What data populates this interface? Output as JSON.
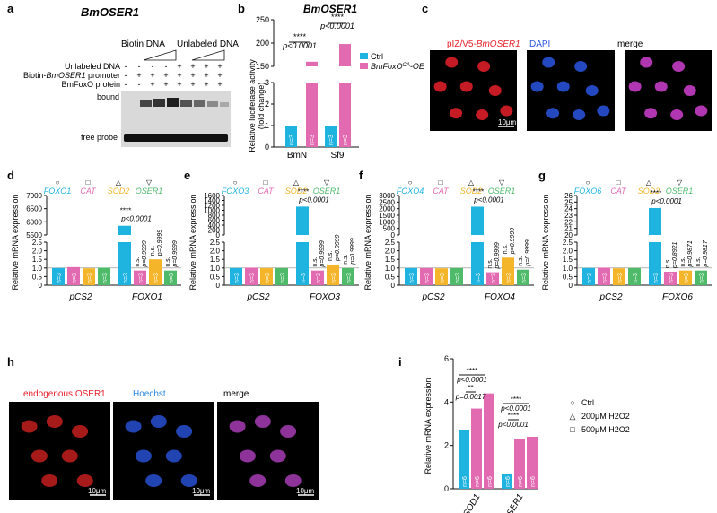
{
  "colors": {
    "cyan": "#1fb3df",
    "pink": "#e26ab1",
    "orange": "#f5b52a",
    "green": "#4fbb6a",
    "red": "#e8202a",
    "blue": "#2a55e0",
    "grey": "#888888"
  },
  "panels": {
    "a": "a",
    "b": "b",
    "c": "c",
    "d": "d",
    "e": "e",
    "f": "f",
    "g": "g",
    "h": "h",
    "i": "i"
  },
  "a": {
    "title": "BmOSER1",
    "biotin_dna": "Biotin DNA",
    "unlabeled_dna_header": "Unlabeled DNA",
    "row1": "Unlabeled DNA",
    "row2": "Biotin-BmOSER1 promoter",
    "row3": "BmFoxO protein",
    "row1_marks": [
      "-",
      "-",
      "-",
      "-",
      "+",
      "+",
      "+",
      "+"
    ],
    "row2_marks": [
      "-",
      "+",
      "+",
      "+",
      "+",
      "+",
      "+",
      "+"
    ],
    "row3_marks": [
      "-",
      "-",
      "+",
      "+",
      "+",
      "+",
      "+",
      "+"
    ],
    "bound": "bound",
    "free_probe": "free probe"
  },
  "b": {
    "title": "BmOSER1",
    "ylabel": "Relative luciferase activity (fold change)",
    "legend_ctrl": "Ctrl",
    "legend_oe": "BmFoxO^CA-OE",
    "groups": [
      "BmN",
      "Sf9"
    ],
    "n_labels": [
      "n=3",
      "n=3",
      "n=3",
      "n=3"
    ],
    "stars": [
      "****",
      "****"
    ],
    "pvals": [
      "p<0.0001",
      "p<0.0001"
    ],
    "upper_ticks": [
      "150",
      "200",
      "250"
    ],
    "lower_ticks": [
      "0",
      "1",
      "2",
      "3"
    ]
  },
  "c": {
    "label1": "pIZ/V5-BmOSER1",
    "label2": "DAPI",
    "label3": "merge",
    "scale": "10μm"
  },
  "h": {
    "label1": "endogenous OSER1",
    "label2": "Hoechst",
    "label3": "merge",
    "scale": "10μm"
  },
  "chart_data": [
    {
      "panel": "d",
      "type": "bar",
      "ylabel": "Relative mRNA expression",
      "categories": [
        "pCS2",
        "FOXO1"
      ],
      "series": [
        {
          "name": "FOXO1",
          "values": [
            1.0,
            5850
          ]
        },
        {
          "name": "CAT",
          "values": [
            1.05,
            0.85
          ]
        },
        {
          "name": "SOD2",
          "values": [
            0.98,
            1.5
          ]
        },
        {
          "name": "OSER1",
          "values": [
            1.02,
            0.85
          ]
        }
      ],
      "stats": [
        "****",
        "n.s.",
        "n.s.",
        "n.s."
      ],
      "pvals": [
        "p<0.0001",
        "p=0.9999",
        "p=0.9999",
        "p=0.9999"
      ],
      "upper_ticks": [
        "5500",
        "6000",
        "6500",
        "7000"
      ],
      "lower_ticks": [
        "0",
        "0.5",
        "1.0",
        "1.5",
        "2.0",
        "2.5"
      ],
      "n": "n=3"
    },
    {
      "panel": "e",
      "type": "bar",
      "ylabel": "Relative mRNA expression",
      "categories": [
        "pCS2",
        "FOXO3"
      ],
      "series": [
        {
          "name": "FOXO3",
          "values": [
            1.0,
            1150
          ]
        },
        {
          "name": "CAT",
          "values": [
            1.02,
            0.85
          ]
        },
        {
          "name": "SOD2",
          "values": [
            1.0,
            1.2
          ]
        },
        {
          "name": "OSER1",
          "values": [
            1.0,
            1.0
          ]
        }
      ],
      "stats": [
        "****",
        "n.s.",
        "n.s.",
        "n.s."
      ],
      "pvals": [
        "p<0.0001",
        "p=0.9999",
        "p=0.9999",
        "p=0.9999"
      ],
      "upper_ticks": [
        "0",
        "200",
        "400",
        "600",
        "800",
        "1000",
        "1200",
        "1400",
        "1600"
      ],
      "lower_ticks": [
        "0",
        "0.5",
        "1.0",
        "1.5",
        "2.0",
        "2.5"
      ],
      "n": "n=3"
    },
    {
      "panel": "f",
      "type": "bar",
      "ylabel": "Relative mRNA expression",
      "categories": [
        "pCS2",
        "FOXO4"
      ],
      "series": [
        {
          "name": "FOXO4",
          "values": [
            1.0,
            2150
          ]
        },
        {
          "name": "CAT",
          "values": [
            1.0,
            0.75
          ]
        },
        {
          "name": "SOD2",
          "values": [
            0.98,
            1.6
          ]
        },
        {
          "name": "OSER1",
          "values": [
            1.0,
            0.9
          ]
        }
      ],
      "stats": [
        "****",
        "n.s.",
        "n.s.",
        "n.s."
      ],
      "pvals": [
        "p<0.0001",
        "p=0.9999",
        "p=0.9999",
        "p=0.9999"
      ],
      "upper_ticks": [
        "0",
        "500",
        "1000",
        "1500",
        "2000",
        "2500",
        "3000"
      ],
      "lower_ticks": [
        "0",
        "0.5",
        "1.0",
        "1.5",
        "2.0",
        "2.5"
      ],
      "n": "n=3"
    },
    {
      "panel": "g",
      "type": "bar",
      "ylabel": "Relative mRNA expression",
      "categories": [
        "pCS2",
        "FOXO6"
      ],
      "series": [
        {
          "name": "FOXO6",
          "values": [
            1.0,
            24.1
          ]
        },
        {
          "name": "CAT",
          "values": [
            1.02,
            0.78
          ]
        },
        {
          "name": "SOD2",
          "values": [
            0.98,
            0.85
          ]
        },
        {
          "name": "OSER1",
          "values": [
            1.0,
            0.85
          ]
        }
      ],
      "stats": [
        "****",
        "n.s.",
        "n.s.",
        "n.s."
      ],
      "pvals": [
        "p<0.0001",
        "p=0.8921",
        "p=0.9871",
        "p=0.9817"
      ],
      "upper_ticks": [
        "20",
        "21",
        "22",
        "23",
        "24",
        "25",
        "26"
      ],
      "lower_ticks": [
        "0",
        "0.5",
        "1.0",
        "1.5",
        "2.0",
        "2.5"
      ],
      "n": "n=3"
    },
    {
      "panel": "i",
      "type": "bar",
      "ylabel": "Relative mRNA expression",
      "categories": [
        "SOD1",
        "OSER1"
      ],
      "series": [
        {
          "name": "Ctrl",
          "values": [
            2.7,
            0.7
          ]
        },
        {
          "name": "200μM H2O2",
          "values": [
            3.7,
            2.3
          ]
        },
        {
          "name": "500μM H2O2",
          "values": [
            4.4,
            2.4
          ]
        }
      ],
      "pvals": [
        "p=0.0017",
        "p<0.0001",
        "p<0.0001",
        "p<0.0001"
      ],
      "stars": [
        "**",
        "****",
        "****",
        "****"
      ],
      "ticks": [
        "0",
        "2",
        "4",
        "6"
      ],
      "n": "n=6",
      "ylim": [
        0,
        6
      ]
    }
  ],
  "legend_i": [
    "Ctrl",
    "200μM H2O2",
    "500μM H2O2"
  ]
}
